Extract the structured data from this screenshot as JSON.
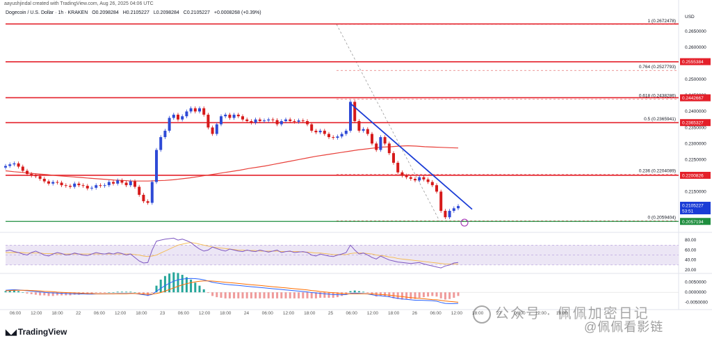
{
  "header": "aayushjindal created with TradingView.com, Aug 26, 2025 04:06 UTC",
  "symbol": {
    "name": "Dogecoin / U.S. Dollar · 1h · KRAKEN",
    "open": "O0.2098284",
    "high": "H0.2105227",
    "low": "L0.2098284",
    "close": "C0.2105227",
    "change": "+0.0008268 (+0.39%)"
  },
  "brand": "TradingView",
  "watermark": {
    "line1": "公众号 · 佩佩加密日记",
    "line2": "@佩佩看影链"
  },
  "colors": {
    "up": "#2e4ad6",
    "down": "#d61a1a",
    "resistance": "#e4202a",
    "support": "#1e8e3e",
    "trendline": "#1a3cd6",
    "ma": "#e8403a",
    "rsi": "#7e57c2",
    "rsi_band": "#ece6f5"
  },
  "chart_data": {
    "type": "candlestick",
    "title": "Dogecoin / U.S. Dollar · 1h · KRAKEN",
    "currency": "USD",
    "ylim": [
      0.2025,
      0.27
    ],
    "y_ticks": [
      "0.2650000",
      "0.2600000",
      "0.2550000",
      "0.2500000",
      "0.2450000",
      "0.2400000",
      "0.2350000",
      "0.2300000",
      "0.2250000",
      "0.2200000",
      "0.2150000",
      "0.2100000"
    ],
    "x_ticks": [
      "06:00",
      "12:00",
      "18:00",
      "22",
      "06:00",
      "12:00",
      "18:00",
      "23",
      "06:00",
      "12:00",
      "18:00",
      "24",
      "06:00",
      "12:00",
      "18:00",
      "25",
      "06:00",
      "12:00",
      "18:00",
      "26",
      "06:00",
      "12:00",
      "18:00",
      "27",
      "06:00",
      "12:00",
      "18:00"
    ],
    "closes": [
      0.223,
      0.2235,
      0.2238,
      0.2228,
      0.2215,
      0.2205,
      0.22,
      0.2198,
      0.219,
      0.2182,
      0.2175,
      0.218,
      0.2178,
      0.217,
      0.2168,
      0.2165,
      0.2175,
      0.217,
      0.2168,
      0.216,
      0.2162,
      0.217,
      0.2168,
      0.217,
      0.218,
      0.2175,
      0.2185,
      0.2178,
      0.217,
      0.2182,
      0.2165,
      0.214,
      0.212,
      0.2115,
      0.218,
      0.228,
      0.232,
      0.234,
      0.238,
      0.239,
      0.2375,
      0.2385,
      0.24,
      0.241,
      0.24,
      0.241,
      0.239,
      0.235,
      0.233,
      0.236,
      0.2385,
      0.239,
      0.238,
      0.239,
      0.2385,
      0.2375,
      0.237,
      0.2365,
      0.2375,
      0.237,
      0.2372,
      0.2375,
      0.2373,
      0.236,
      0.237,
      0.2375,
      0.237,
      0.2368,
      0.2372,
      0.237,
      0.236,
      0.234,
      0.2335,
      0.234,
      0.233,
      0.232,
      0.2318,
      0.2322,
      0.233,
      0.234,
      0.243,
      0.237,
      0.234,
      0.2345,
      0.233,
      0.23,
      0.228,
      0.232,
      0.23,
      0.227,
      0.224,
      0.221,
      0.22,
      0.2195,
      0.219,
      0.2185,
      0.2195,
      0.2188,
      0.218,
      0.217,
      0.215,
      0.209,
      0.207,
      0.209,
      0.2098,
      0.2105
    ],
    "ma_100": [
      0.2215,
      0.2212,
      0.221,
      0.2207,
      0.2205,
      0.2203,
      0.22,
      0.2198,
      0.2196,
      0.2194,
      0.2192,
      0.219,
      0.2188,
      0.2186,
      0.2185,
      0.2183,
      0.2183,
      0.2183,
      0.2184,
      0.2185,
      0.2187,
      0.219,
      0.2193,
      0.2197,
      0.2201,
      0.2205,
      0.2209,
      0.2213,
      0.2217,
      0.2222,
      0.2226,
      0.223,
      0.2235,
      0.224,
      0.2245,
      0.225,
      0.2255,
      0.226,
      0.2264,
      0.2268,
      0.2272,
      0.2276,
      0.228,
      0.2283,
      0.2286,
      0.2289,
      0.229,
      0.2292,
      0.2293,
      0.2292,
      0.229,
      0.2289,
      0.2288,
      0.2287,
      0.2286
    ],
    "resistance_levels": [
      0.2673,
      0.2555,
      0.2443,
      0.2365,
      0.2201
    ],
    "support_level": 0.2057,
    "resistance_tags": [
      "0.2555384",
      "0.2442667",
      "0.2365327",
      "0.2200826"
    ],
    "support_tag": "0.2057194",
    "last_price_tag": "0.2105227",
    "countdown": "53:51",
    "fib_levels": [
      {
        "label": "1 (0.2672478)",
        "value": 0.2672
      },
      {
        "label": "0.764 (0.2527793)",
        "value": 0.2528
      },
      {
        "label": "0.618 (0.2438286)",
        "value": 0.2438
      },
      {
        "label": "0.5 (0.2365941)",
        "value": 0.2366
      },
      {
        "label": "0.236 (0.2204089)",
        "value": 0.2204
      },
      {
        "label": "0 (0.2059404)",
        "value": 0.2059
      }
    ],
    "trendline": {
      "from": [
        80,
        0.2425
      ],
      "to": [
        105,
        0.2095
      ]
    },
    "rsi": {
      "y_ticks": [
        "80.00",
        "60.00",
        "40.00",
        "20.00"
      ],
      "ylim": [
        20,
        90
      ],
      "values": [
        58,
        60,
        57,
        55,
        52,
        50,
        55,
        58,
        54,
        50,
        48,
        52,
        55,
        53,
        50,
        51,
        54,
        52,
        50,
        49,
        52,
        55,
        53,
        52,
        54,
        52,
        55,
        53,
        50,
        52,
        45,
        38,
        34,
        35,
        60,
        78,
        80,
        82,
        83,
        84,
        80,
        82,
        79,
        75,
        68,
        62,
        58,
        60,
        66,
        63,
        60,
        58,
        62,
        60,
        58,
        57,
        60,
        58,
        57,
        60,
        58,
        56,
        58,
        60,
        55,
        57,
        58,
        55,
        56,
        57,
        55,
        50,
        48,
        52,
        50,
        48,
        47,
        50,
        52,
        55,
        70,
        60,
        52,
        54,
        50,
        45,
        42,
        48,
        44,
        40,
        38,
        36,
        35,
        34,
        33,
        34,
        35,
        32,
        30,
        28,
        26,
        24,
        28,
        30,
        34,
        35
      ],
      "signal": [
        55,
        55,
        55,
        55,
        55,
        54,
        54,
        54,
        54,
        53,
        53,
        53,
        52,
        52,
        52,
        52,
        52,
        52,
        52,
        52,
        52,
        52,
        52,
        52,
        52,
        52,
        52,
        52,
        52,
        52,
        51,
        50,
        48,
        47,
        48,
        50,
        54,
        58,
        62,
        66,
        70,
        72,
        74,
        75,
        74,
        72,
        70,
        68,
        66,
        65,
        64,
        63,
        62,
        61,
        60,
        60,
        59,
        59,
        59,
        58,
        58,
        58,
        58,
        58,
        57,
        57,
        57,
        57,
        57,
        56,
        56,
        55,
        54,
        54,
        53,
        52,
        51,
        51,
        51,
        51,
        53,
        54,
        54,
        54,
        53,
        52,
        50,
        49,
        48,
        46,
        45,
        43,
        42,
        41,
        40,
        39,
        38,
        37,
        36,
        35,
        34,
        33,
        32,
        32,
        32,
        32
      ]
    },
    "macd": {
      "y_ticks": [
        "0.0050000",
        "0.0000000",
        "-0.0050000"
      ],
      "ylim": [
        -0.0065,
        0.008
      ],
      "macd": [
        0.001,
        0.0012,
        0.0013,
        0.0012,
        0.001,
        0.0008,
        0.0006,
        0.0004,
        0.0002,
        0.0,
        -0.0002,
        -0.0003,
        -0.0004,
        -0.0005,
        -0.0006,
        -0.0007,
        -0.0007,
        -0.0008,
        -0.0008,
        -0.0009,
        -0.0009,
        -0.0008,
        -0.0008,
        -0.0008,
        -0.0007,
        -0.0007,
        -0.0006,
        -0.0006,
        -0.0006,
        -0.0005,
        -0.0006,
        -0.0009,
        -0.0012,
        -0.0015,
        -0.001,
        0.0005,
        0.002,
        0.0033,
        0.0045,
        0.0055,
        0.0062,
        0.0066,
        0.0068,
        0.0069,
        0.0068,
        0.0066,
        0.0062,
        0.0056,
        0.005,
        0.0046,
        0.0043,
        0.004,
        0.0038,
        0.0036,
        0.0034,
        0.0032,
        0.003,
        0.0028,
        0.0026,
        0.0024,
        0.0022,
        0.002,
        0.0018,
        0.0016,
        0.0014,
        0.0012,
        0.001,
        0.0008,
        0.0006,
        0.0004,
        0.0002,
        -0.0001,
        -0.0003,
        -0.0005,
        -0.0007,
        -0.0009,
        -0.0011,
        -0.0012,
        -0.0012,
        -0.0011,
        -0.0005,
        -0.0004,
        -0.0005,
        -0.0006,
        -0.0008,
        -0.0012,
        -0.0016,
        -0.0017,
        -0.0019,
        -0.0022,
        -0.0026,
        -0.003,
        -0.0033,
        -0.0035,
        -0.0037,
        -0.0039,
        -0.0039,
        -0.004,
        -0.0041,
        -0.0042,
        -0.0044,
        -0.005,
        -0.0055,
        -0.0056,
        -0.0056,
        -0.0055
      ],
      "signal": [
        0.0008,
        0.0009,
        0.001,
        0.001,
        0.001,
        0.001,
        0.0009,
        0.0008,
        0.0007,
        0.0005,
        0.0004,
        0.0003,
        0.0001,
        0.0,
        -0.0001,
        -0.0002,
        -0.0003,
        -0.0004,
        -0.0005,
        -0.0006,
        -0.0006,
        -0.0007,
        -0.0007,
        -0.0007,
        -0.0007,
        -0.0007,
        -0.0007,
        -0.0007,
        -0.0007,
        -0.0006,
        -0.0006,
        -0.0007,
        -0.0008,
        -0.0009,
        -0.0009,
        -0.0006,
        -0.0001,
        0.0006,
        0.0014,
        0.0022,
        0.003,
        0.0037,
        0.0043,
        0.0048,
        0.0052,
        0.0055,
        0.0057,
        0.0057,
        0.0056,
        0.0054,
        0.0052,
        0.005,
        0.0048,
        0.0046,
        0.0044,
        0.0042,
        0.004,
        0.0038,
        0.0036,
        0.0034,
        0.0032,
        0.003,
        0.0028,
        0.0026,
        0.0024,
        0.0022,
        0.002,
        0.0018,
        0.0016,
        0.0014,
        0.0012,
        0.0009,
        0.0007,
        0.0004,
        0.0002,
        0.0,
        -0.0002,
        -0.0004,
        -0.0006,
        -0.0007,
        -0.0007,
        -0.0007,
        -0.0007,
        -0.0007,
        -0.0007,
        -0.0008,
        -0.0009,
        -0.0011,
        -0.0012,
        -0.0014,
        -0.0016,
        -0.0019,
        -0.0021,
        -0.0024,
        -0.0026,
        -0.0028,
        -0.003,
        -0.0032,
        -0.0034,
        -0.0036,
        -0.0037,
        -0.004,
        -0.0043,
        -0.0045,
        -0.0047,
        -0.0049
      ]
    }
  }
}
